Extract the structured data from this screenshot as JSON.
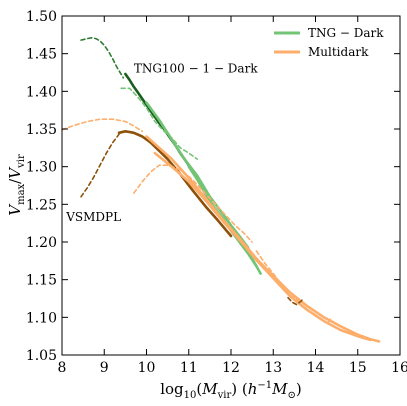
{
  "chart_data": {
    "type": "line",
    "title": "",
    "xlabel": "log10(Mvir) (h^-1 M⊙)",
    "ylabel": "Vmax/Vvir",
    "xlim": [
      8,
      16
    ],
    "ylim": [
      1.05,
      1.5
    ],
    "xticks": [
      "8",
      "9",
      "10",
      "11",
      "12",
      "13",
      "14",
      "15",
      "16"
    ],
    "yticks": [
      "1.05",
      "1.10",
      "1.15",
      "1.20",
      "1.25",
      "1.30",
      "1.35",
      "1.40",
      "1.45",
      "1.50"
    ],
    "grid": false,
    "legend_position": "top-right",
    "legend": [
      {
        "label": "TNG − Dark",
        "color": "#74c476"
      },
      {
        "label": "Multidark",
        "color": "#fdae6b"
      }
    ],
    "annotations": [
      {
        "text": "TNG100 − 1 − Dark",
        "x": 9.7,
        "y": 1.425
      },
      {
        "text": "VSMDPL",
        "x": 8.1,
        "y": 1.228
      }
    ],
    "series": [
      {
        "color": "#2e7d32",
        "style": "dashed",
        "x": [
          8.45,
          8.6,
          8.7,
          8.8,
          8.9,
          9.0,
          9.1,
          9.2,
          9.3,
          9.45
        ],
        "y": [
          1.468,
          1.47,
          1.471,
          1.47,
          1.467,
          1.461,
          1.453,
          1.443,
          1.432,
          1.418
        ]
      },
      {
        "color": "#1b5e20",
        "style": "solid",
        "x": [
          9.5,
          9.6,
          9.7,
          9.8,
          9.9,
          10.0,
          10.1,
          10.2,
          10.3,
          10.4,
          10.5,
          10.6,
          10.7,
          10.8,
          10.9,
          11.0,
          11.1,
          11.2
        ],
        "y": [
          1.423,
          1.415,
          1.406,
          1.398,
          1.39,
          1.382,
          1.374,
          1.366,
          1.358,
          1.351,
          1.343,
          1.335,
          1.327,
          1.318,
          1.31,
          1.302,
          1.294,
          1.286
        ]
      },
      {
        "color": "#74c476",
        "style": "dashed",
        "x": [
          9.4,
          9.6,
          9.8,
          10.0,
          10.2,
          10.4,
          10.6,
          10.8,
          11.0,
          11.2
        ],
        "y": [
          1.404,
          1.404,
          1.392,
          1.378,
          1.36,
          1.348,
          1.338,
          1.325,
          1.318,
          1.31
        ]
      },
      {
        "color": "#74c476",
        "style": "solid",
        "x": [
          10.0,
          10.3,
          10.6,
          10.9,
          11.2,
          11.5,
          11.8,
          12.0,
          12.2,
          12.4,
          12.5,
          12.6,
          12.7
        ],
        "y": [
          1.385,
          1.362,
          1.336,
          1.31,
          1.288,
          1.26,
          1.238,
          1.222,
          1.208,
          1.193,
          1.178,
          1.168,
          1.158
        ]
      },
      {
        "color": "#74c476",
        "style": "solid",
        "x": [
          11.0,
          11.2,
          11.4,
          11.6,
          11.8,
          12.0,
          12.2,
          12.4,
          12.6
        ],
        "y": [
          1.3,
          1.283,
          1.263,
          1.246,
          1.232,
          1.215,
          1.2,
          1.185,
          1.168
        ]
      },
      {
        "color": "#fdae6b",
        "style": "dashed",
        "x": [
          8.0,
          8.3,
          8.6,
          8.9,
          9.2,
          9.5,
          9.7,
          9.9
        ],
        "y": [
          1.349,
          1.355,
          1.36,
          1.363,
          1.363,
          1.36,
          1.354,
          1.347
        ]
      },
      {
        "color": "#8c510a",
        "style": "dashed",
        "x": [
          8.45,
          8.6,
          8.75,
          8.9,
          9.05,
          9.2,
          9.35
        ],
        "y": [
          1.26,
          1.272,
          1.286,
          1.302,
          1.318,
          1.332,
          1.343
        ]
      },
      {
        "color": "#8c510a",
        "style": "solid",
        "x": [
          9.35,
          9.5,
          9.7,
          9.9,
          10.1,
          10.3,
          10.5,
          10.8,
          11.1,
          11.4,
          11.7,
          12.0
        ],
        "y": [
          1.345,
          1.347,
          1.345,
          1.34,
          1.332,
          1.321,
          1.31,
          1.29,
          1.268,
          1.247,
          1.228,
          1.208
        ]
      },
      {
        "color": "#fdae6b",
        "style": "dashed",
        "x": [
          9.7,
          9.9,
          10.1,
          10.3,
          10.5,
          10.7,
          10.9,
          11.1,
          11.3,
          11.5,
          11.7,
          11.9,
          12.1,
          12.3,
          12.5
        ],
        "y": [
          1.265,
          1.28,
          1.293,
          1.302,
          1.302,
          1.298,
          1.292,
          1.282,
          1.27,
          1.258,
          1.246,
          1.234,
          1.222,
          1.212,
          1.2
        ]
      },
      {
        "color": "#fdae6b",
        "style": "solid",
        "x": [
          10.0,
          10.3,
          10.6,
          11.0,
          11.4,
          11.8,
          12.2,
          12.6,
          13.0,
          13.4,
          13.8,
          14.2,
          14.6,
          15.0,
          15.3,
          15.5
        ],
        "y": [
          1.34,
          1.325,
          1.31,
          1.285,
          1.258,
          1.23,
          1.205,
          1.178,
          1.155,
          1.133,
          1.115,
          1.1,
          1.088,
          1.077,
          1.071,
          1.068
        ]
      },
      {
        "color": "#fdae6b",
        "style": "solid",
        "x": [
          10.2,
          10.6,
          11.0,
          11.4,
          11.8,
          12.2,
          12.6,
          13.0,
          13.4,
          13.8,
          14.2,
          14.6,
          15.0,
          15.3
        ],
        "y": [
          1.318,
          1.3,
          1.28,
          1.255,
          1.228,
          1.203,
          1.176,
          1.152,
          1.128,
          1.11,
          1.095,
          1.083,
          1.075,
          1.07
        ]
      },
      {
        "color": "#fdae6b",
        "style": "dashed",
        "x": [
          12.6,
          12.8,
          13.0,
          13.2,
          13.4,
          13.6
        ],
        "y": [
          1.188,
          1.172,
          1.158,
          1.143,
          1.132,
          1.122
        ]
      },
      {
        "color": "#8c510a",
        "style": "dashed",
        "x": [
          13.35,
          13.45,
          13.55,
          13.65,
          13.7
        ],
        "y": [
          1.126,
          1.12,
          1.117,
          1.121,
          1.124
        ]
      },
      {
        "color": "#fdae6b",
        "style": "dashed",
        "x": [
          14.3,
          14.35,
          14.4
        ],
        "y": [
          1.093,
          1.097,
          1.1
        ]
      }
    ]
  }
}
